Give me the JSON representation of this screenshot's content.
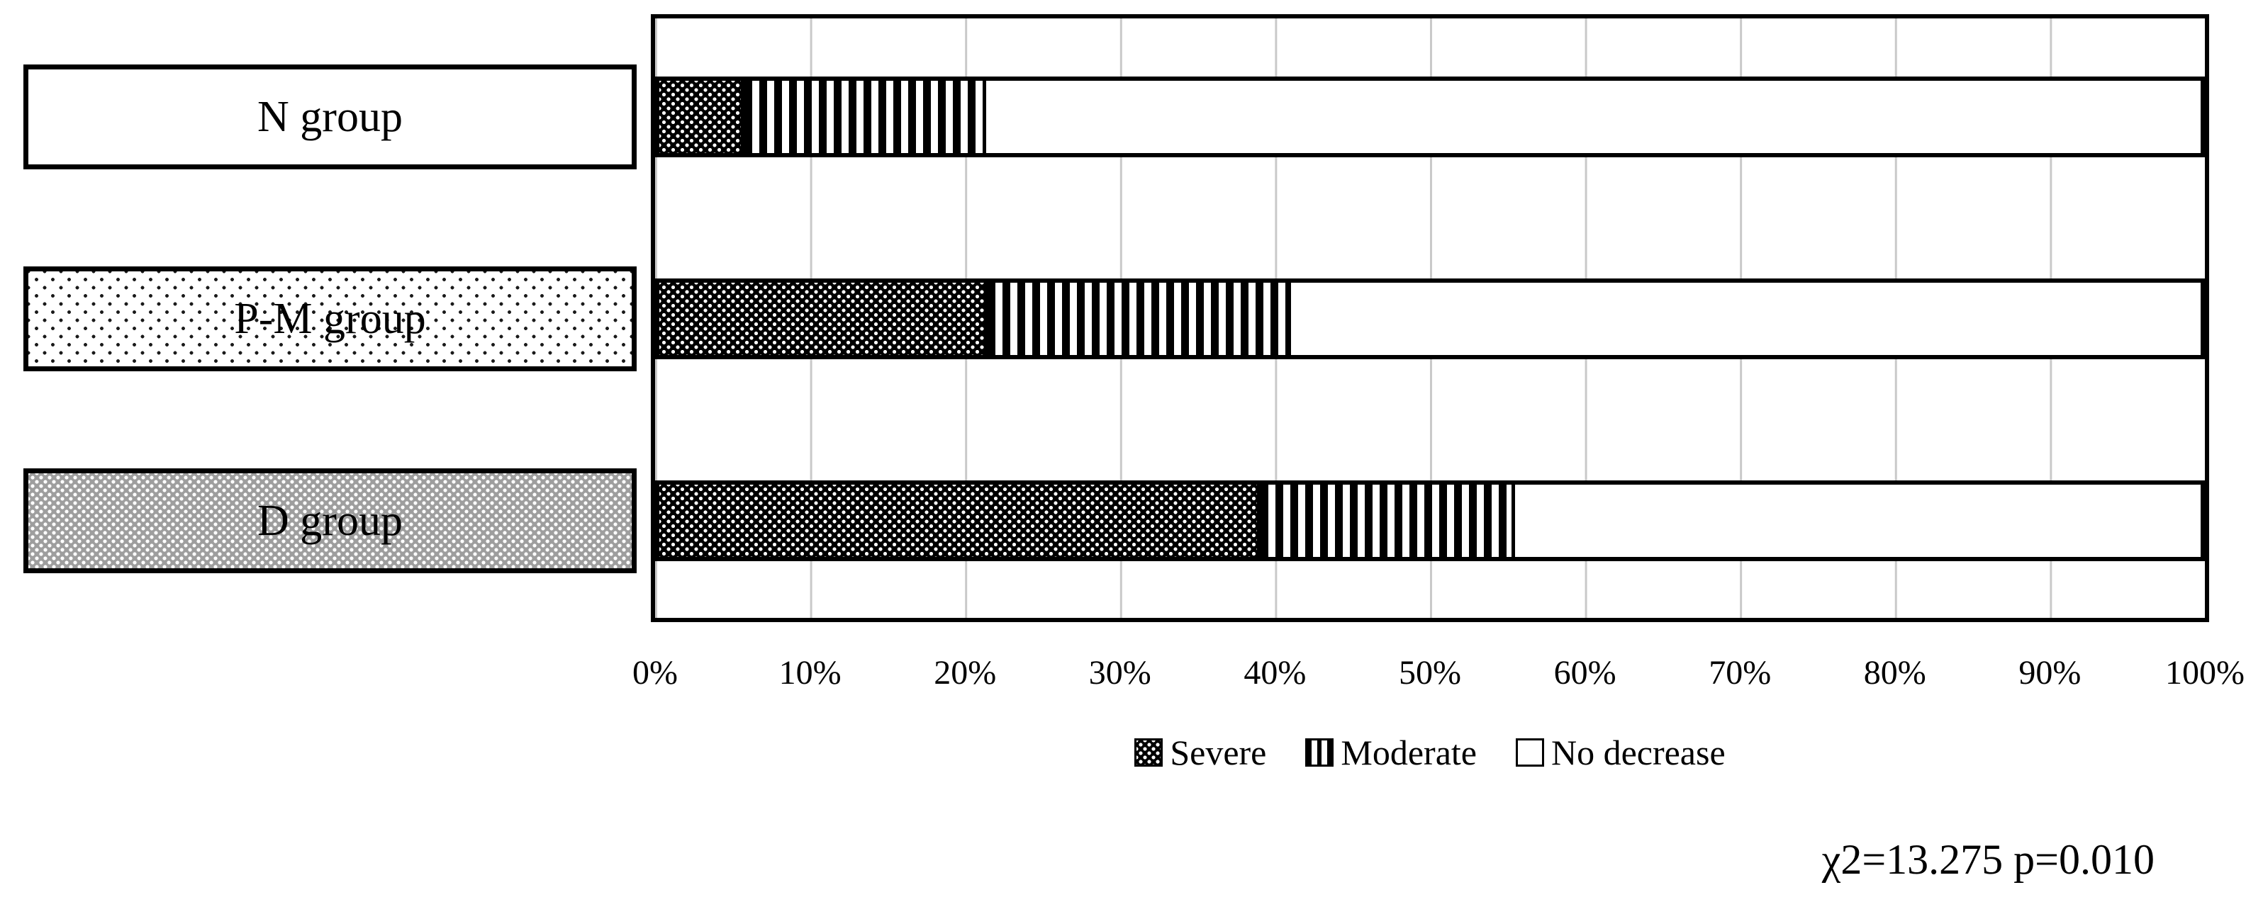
{
  "chart_data": {
    "type": "bar",
    "orientation": "horizontal",
    "stacked": true,
    "unit": "percent",
    "title": "",
    "xlabel": "",
    "ylabel": "",
    "categories": [
      "N group",
      "P-M group",
      "D group"
    ],
    "series": [
      {
        "name": "Severe",
        "pattern": "dark-dots",
        "values": [
          5.5,
          21.3,
          39.0
        ]
      },
      {
        "name": "Moderate",
        "pattern": "vertical-stripes",
        "values": [
          15.7,
          19.7,
          16.5
        ]
      },
      {
        "name": "No decrease",
        "pattern": "plain",
        "values": [
          78.8,
          59.0,
          44.5
        ]
      }
    ],
    "x_ticks": [
      "0%",
      "10%",
      "20%",
      "30%",
      "40%",
      "50%",
      "60%",
      "70%",
      "80%",
      "90%",
      "100%"
    ],
    "xlim": [
      0,
      100
    ],
    "grid": true,
    "legend_position": "bottom-center",
    "annotation": "χ2=13.275 p=0.010"
  },
  "colors": {
    "foreground": "#000000",
    "background": "#ffffff",
    "gridline": "#c9c9c9",
    "d_group_box_fill": "#9e9e9e"
  }
}
